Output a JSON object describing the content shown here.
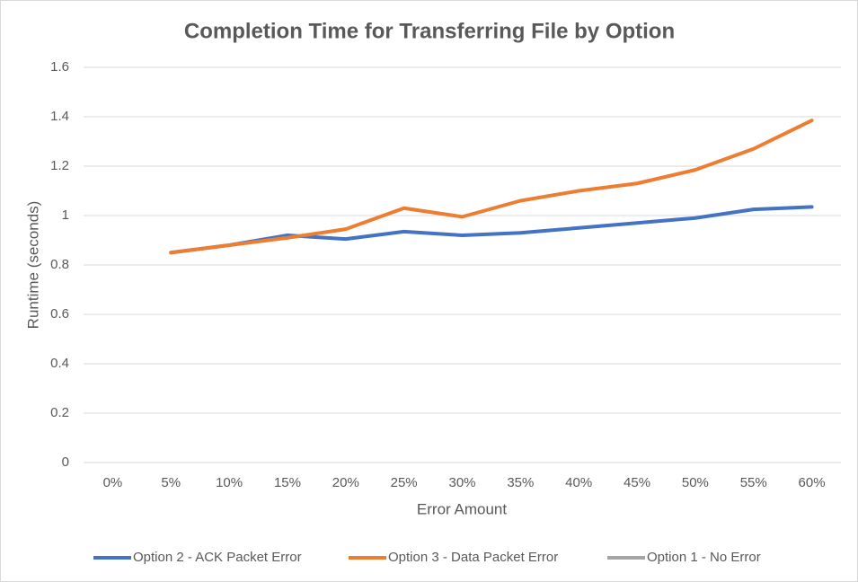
{
  "chart_data": {
    "type": "line",
    "title": "Completion Time for Transferring File by Option",
    "x_label": "Error Amount",
    "y_label": "Runtime (seconds)",
    "categories": [
      "0%",
      "5%",
      "10%",
      "15%",
      "20%",
      "25%",
      "30%",
      "35%",
      "40%",
      "45%",
      "50%",
      "55%",
      "60%"
    ],
    "series": [
      {
        "name": "Option 2 - ACK Packet Error",
        "color": "#4472c4",
        "values": [
          null,
          0.85,
          0.88,
          0.92,
          0.905,
          0.935,
          0.92,
          0.93,
          0.95,
          0.97,
          0.99,
          1.025,
          1.035
        ]
      },
      {
        "name": "Option 3 - Data Packet Error",
        "color": "#ed7d31",
        "values": [
          null,
          0.85,
          0.88,
          0.91,
          0.945,
          1.03,
          0.995,
          1.06,
          1.1,
          1.13,
          1.185,
          1.27,
          1.385
        ]
      },
      {
        "name": "Option 1 - No Error",
        "color": "#a5a5a5",
        "values": [
          null,
          null,
          null,
          null,
          null,
          null,
          null,
          null,
          null,
          null,
          null,
          null,
          null
        ]
      }
    ],
    "ylim": [
      0,
      1.6
    ],
    "yticks": [
      0,
      0.2,
      0.4,
      0.6,
      0.8,
      1,
      1.2,
      1.4,
      1.6
    ],
    "grid": true,
    "legend": "bottom"
  }
}
